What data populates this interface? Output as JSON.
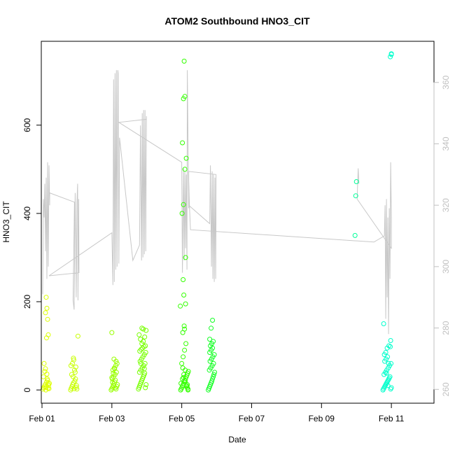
{
  "chart_data": {
    "type": "scatter",
    "title": "ATOM2 Southbound HNO3_CIT",
    "xlabel": "Date",
    "ylabel": "HNO3_CIT",
    "xlim": [
      -0.02,
      11.22
    ],
    "ylim": [
      -30,
      790
    ],
    "x_ticks": [
      {
        "value": 0,
        "label": "Feb 01"
      },
      {
        "value": 2,
        "label": "Feb 03"
      },
      {
        "value": 4,
        "label": "Feb 05"
      },
      {
        "value": 6,
        "label": "Feb 07"
      },
      {
        "value": 8,
        "label": "Feb 09"
      },
      {
        "value": 10,
        "label": "Feb 11"
      }
    ],
    "y_ticks": [
      0,
      200,
      400,
      600
    ],
    "right_axis": {
      "ylim": [
        255.5,
        373.4
      ],
      "ticks": [
        260,
        280,
        300,
        320,
        340,
        360
      ],
      "color": "#c0c0c0"
    },
    "series_line_color": "#c8c8c8",
    "groups": [
      {
        "color": "#ddff00",
        "x": [
          0.03,
          0.05,
          0.07,
          0.09,
          0.11,
          0.13,
          0.15,
          0.17,
          0.19,
          0.21,
          0.04,
          0.08,
          0.12,
          0.16,
          0.2,
          0.06,
          0.1,
          0.14,
          0.18,
          0.12,
          0.14,
          0.1,
          0.16,
          0.18,
          0.13
        ],
        "y": [
          2,
          5,
          8,
          12,
          0,
          18,
          25,
          4,
          10,
          15,
          30,
          42,
          6,
          22,
          3,
          60,
          48,
          36,
          14,
          210,
          185,
          175,
          160,
          125,
          118
        ]
      },
      {
        "color": "#c8ff00",
        "x": [
          0.82,
          0.84,
          0.86,
          0.88,
          0.9,
          0.92,
          0.94,
          0.96,
          0.98,
          0.85,
          0.89,
          0.93,
          0.97,
          0.87,
          0.91,
          0.95,
          0.83,
          0.99,
          1.0,
          0.9,
          1.03
        ],
        "y": [
          0,
          4,
          8,
          12,
          16,
          3,
          20,
          25,
          6,
          35,
          30,
          45,
          52,
          60,
          68,
          40,
          55,
          10,
          2,
          72,
          122
        ]
      },
      {
        "color": "#99ff00",
        "x": [
          1.98,
          2.0,
          2.02,
          2.04,
          2.06,
          2.08,
          2.1,
          2.12,
          2.14,
          2.16,
          2.01,
          2.05,
          2.09,
          2.13,
          2.03,
          2.07,
          2.11,
          2.15,
          2.0,
          2.04,
          2.08,
          2.12,
          2.06,
          2.02,
          2.1,
          2.0
        ],
        "y": [
          0,
          3,
          6,
          10,
          14,
          18,
          22,
          2,
          8,
          12,
          25,
          30,
          35,
          40,
          45,
          50,
          55,
          60,
          28,
          38,
          48,
          65,
          70,
          17,
          5,
          130
        ]
      },
      {
        "color": "#77ff00",
        "x": [
          2.76,
          2.78,
          2.8,
          2.82,
          2.84,
          2.86,
          2.88,
          2.9,
          2.92,
          2.94,
          2.96,
          2.98,
          2.79,
          2.83,
          2.87,
          2.91,
          2.95,
          2.81,
          2.85,
          2.89,
          2.93,
          2.97,
          2.8,
          2.84,
          2.88,
          2.92,
          2.96,
          2.86,
          2.9,
          2.82,
          2.94,
          2.78,
          2.98,
          2.86,
          2.9,
          2.83,
          2.93
        ],
        "y": [
          2,
          6,
          10,
          14,
          18,
          22,
          26,
          30,
          34,
          38,
          5,
          12,
          40,
          45,
          50,
          55,
          60,
          65,
          70,
          75,
          80,
          85,
          88,
          92,
          95,
          98,
          100,
          105,
          110,
          115,
          120,
          125,
          135,
          140,
          138,
          60,
          48
        ]
      },
      {
        "color": "#33ff00",
        "x": [
          3.97,
          3.99,
          4.01,
          4.03,
          4.05,
          4.07,
          4.09,
          4.11,
          4.13,
          4.15,
          4.17,
          4.19,
          3.98,
          4.02,
          4.06,
          4.1,
          4.14,
          4.18,
          4.0,
          4.04,
          4.08,
          4.12,
          4.16,
          3.96,
          4.03,
          4.07,
          4.11,
          4.01,
          4.05,
          4.09,
          4.13,
          4.02,
          4.06,
          4.04,
          4.08,
          4.05,
          4.09,
          4.07,
          4.11,
          4.03,
          4.05,
          4.1,
          4.14,
          4.16,
          4.18
        ],
        "y": [
          0,
          3,
          6,
          10,
          14,
          18,
          22,
          26,
          30,
          34,
          38,
          42,
          15,
          25,
          35,
          45,
          8,
          2,
          60,
          75,
          90,
          105,
          12,
          190,
          130,
          145,
          300,
          400,
          420,
          500,
          525,
          560,
          215,
          250,
          138,
          660,
          665,
          745,
          195,
          50,
          28,
          20,
          10,
          5,
          0
        ]
      },
      {
        "color": "#11ff22",
        "x": [
          4.76,
          4.78,
          4.8,
          4.82,
          4.84,
          4.86,
          4.88,
          4.9,
          4.92,
          4.94,
          4.79,
          4.83,
          4.87,
          4.91,
          4.81,
          4.85,
          4.89,
          4.93,
          4.8,
          4.84,
          4.88,
          4.82,
          4.86,
          4.9,
          4.8,
          4.84,
          4.88
        ],
        "y": [
          0,
          4,
          8,
          12,
          16,
          20,
          25,
          30,
          35,
          40,
          45,
          50,
          55,
          60,
          65,
          70,
          75,
          80,
          85,
          90,
          95,
          100,
          105,
          110,
          115,
          140,
          158
        ]
      },
      {
        "color": "#00ff99",
        "x": [
          8.96,
          8.98,
          9.0
        ],
        "y": [
          350,
          440,
          472
        ]
      },
      {
        "color": "#00ffcc",
        "x": [
          9.76,
          9.78,
          9.8,
          9.82,
          9.84,
          9.86,
          9.88,
          9.9,
          9.92,
          9.94,
          9.96,
          9.98,
          10.0,
          9.79,
          9.83,
          9.87,
          9.91,
          9.95,
          9.99,
          9.81,
          9.85,
          9.89,
          9.93,
          9.97,
          9.8,
          9.84,
          9.88,
          9.92,
          9.78,
          9.86,
          9.9,
          9.98,
          9.97,
          10.0,
          10.0
        ],
        "y": [
          0,
          3,
          6,
          9,
          12,
          15,
          18,
          21,
          24,
          27,
          30,
          2,
          5,
          35,
          40,
          45,
          50,
          55,
          60,
          65,
          70,
          75,
          100,
          98,
          80,
          85,
          95,
          60,
          150,
          38,
          10,
          112,
          755,
          760,
          762
        ]
      }
    ],
    "line_series": [
      {
        "name": "",
        "axis": "right",
        "points": [
          [
            0.02,
            291
          ],
          [
            0.04,
            322
          ],
          [
            0.06,
            316
          ],
          [
            0.08,
            327
          ],
          [
            0.1,
            305
          ],
          [
            0.12,
            329
          ],
          [
            0.14,
            296
          ],
          [
            0.16,
            334
          ],
          [
            0.18,
            300
          ],
          [
            0.2,
            333
          ],
          [
            0.22,
            320
          ],
          [
            0.22,
            324
          ],
          [
            0.93,
            321
          ],
          [
            0.89,
            289
          ],
          [
            0.92,
            286
          ],
          [
            0.95,
            324
          ],
          [
            0.98,
            290
          ],
          [
            1.0,
            321
          ],
          [
            1.02,
            327
          ],
          [
            1.03,
            289
          ],
          [
            1.05,
            322
          ],
          [
            1.06,
            298
          ],
          [
            0.2,
            297
          ],
          [
            2.0,
            311
          ],
          [
            2.03,
            294
          ],
          [
            2.05,
            361
          ],
          [
            2.07,
            295
          ],
          [
            2.09,
            363
          ],
          [
            2.11,
            299
          ],
          [
            2.13,
            364
          ],
          [
            2.15,
            300
          ],
          [
            2.17,
            364
          ],
          [
            2.18,
            363
          ],
          [
            2.2,
            301
          ],
          [
            2.22,
            342
          ],
          [
            2.6,
            302
          ],
          [
            2.79,
            307
          ],
          [
            2.82,
            346
          ],
          [
            2.85,
            302
          ],
          [
            2.87,
            350
          ],
          [
            2.89,
            303
          ],
          [
            2.91,
            351
          ],
          [
            2.93,
            304
          ],
          [
            2.95,
            351
          ],
          [
            2.97,
            305
          ],
          [
            2.99,
            349
          ],
          [
            2.99,
            348
          ],
          [
            2.2,
            347
          ],
          [
            4.0,
            334
          ],
          [
            4.02,
            298
          ],
          [
            4.05,
            332
          ],
          [
            4.07,
            302
          ],
          [
            4.09,
            331
          ],
          [
            4.11,
            306
          ],
          [
            4.13,
            330
          ],
          [
            4.15,
            299
          ],
          [
            4.16,
            364
          ],
          [
            4.18,
            341
          ],
          [
            4.2,
            319
          ],
          [
            4.2,
            320
          ],
          [
            4.8,
            314
          ],
          [
            4.82,
            333
          ],
          [
            4.85,
            300
          ],
          [
            4.87,
            331
          ],
          [
            4.89,
            296
          ],
          [
            4.91,
            330
          ],
          [
            4.93,
            295
          ],
          [
            4.95,
            329
          ],
          [
            4.97,
            296
          ],
          [
            4.98,
            316
          ],
          [
            4.98,
            330
          ],
          [
            4.2,
            331
          ],
          [
            4.2,
            328
          ],
          [
            4.22,
            320
          ],
          [
            4.25,
            312
          ],
          [
            9.5,
            308
          ],
          [
            9.8,
            310
          ],
          [
            9.82,
            320
          ],
          [
            9.84,
            283
          ],
          [
            9.86,
            322
          ],
          [
            9.88,
            290
          ],
          [
            9.9,
            316
          ],
          [
            9.92,
            278
          ],
          [
            9.94,
            319
          ],
          [
            9.96,
            296
          ],
          [
            9.98,
            334
          ],
          [
            10.0,
            316
          ],
          [
            10.0,
            306
          ],
          [
            10.0,
            306
          ],
          [
            9.02,
            322
          ],
          [
            9.05,
            332
          ],
          [
            9.07,
            327
          ]
        ]
      }
    ]
  }
}
